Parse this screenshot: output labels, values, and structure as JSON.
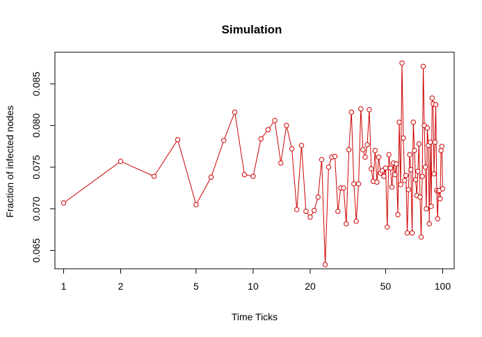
{
  "chart_data": {
    "type": "line",
    "title": "Simulation",
    "xlabel": "Time Ticks",
    "ylabel": "Fraction of infected nodes",
    "x_scale": "log",
    "xlim": [
      0.9,
      115
    ],
    "ylim": [
      0.0628,
      0.0888
    ],
    "x_ticks": [
      1,
      2,
      5,
      10,
      20,
      50,
      100
    ],
    "x_tick_labels": [
      "1",
      "2",
      "5",
      "10",
      "20",
      "50",
      "100"
    ],
    "y_ticks": [
      0.065,
      0.07,
      0.075,
      0.08,
      0.085
    ],
    "y_tick_labels": [
      "0.065",
      "0.070",
      "0.075",
      "0.080",
      "0.085"
    ],
    "grid": false,
    "legend": false,
    "series_color": "#cc0000",
    "series": [
      {
        "x": [
          1,
          2,
          3,
          4,
          5,
          6,
          7,
          8,
          9,
          10,
          11,
          12,
          13,
          14,
          15,
          16,
          17,
          18,
          19,
          20,
          21,
          22,
          23,
          24,
          25,
          26,
          27,
          28,
          29,
          30,
          31,
          32,
          33,
          34,
          35,
          36,
          37,
          38,
          39,
          40,
          41,
          42,
          43,
          44,
          45,
          46,
          47,
          48,
          49,
          50,
          51,
          52,
          53,
          54,
          55,
          56,
          57,
          58,
          59,
          60,
          61,
          62,
          63,
          64,
          65,
          66,
          67,
          68,
          69,
          70,
          71,
          72,
          73,
          74,
          75,
          76,
          77,
          78,
          79,
          80,
          81,
          82,
          83,
          84,
          85,
          86,
          87,
          88,
          89,
          90,
          91,
          92,
          93,
          94,
          95,
          96,
          97,
          98,
          99,
          100
        ],
        "y": [
          0.0707,
          0.0757,
          0.0739,
          0.0783,
          0.0705,
          0.0738,
          0.0782,
          0.0816,
          0.0741,
          0.0739,
          0.0784,
          0.0795,
          0.0806,
          0.0755,
          0.08,
          0.0772,
          0.0699,
          0.0776,
          0.0697,
          0.069,
          0.0698,
          0.0714,
          0.0759,
          0.0633,
          0.075,
          0.0762,
          0.0763,
          0.0697,
          0.0725,
          0.0725,
          0.0682,
          0.0771,
          0.0816,
          0.073,
          0.0685,
          0.073,
          0.082,
          0.0771,
          0.0762,
          0.0777,
          0.0819,
          0.0748,
          0.0733,
          0.077,
          0.0732,
          0.0762,
          0.0743,
          0.0746,
          0.0739,
          0.0749,
          0.0678,
          0.0765,
          0.0749,
          0.0726,
          0.0755,
          0.0741,
          0.0754,
          0.0693,
          0.0804,
          0.0729,
          0.0875,
          0.0785,
          0.0734,
          0.074,
          0.0671,
          0.0723,
          0.0765,
          0.0747,
          0.0671,
          0.0804,
          0.077,
          0.0735,
          0.0716,
          0.0745,
          0.0778,
          0.0714,
          0.0666,
          0.0739,
          0.0871,
          0.08,
          0.075,
          0.07,
          0.0797,
          0.0776,
          0.0682,
          0.078,
          0.0703,
          0.0833,
          0.0826,
          0.0742,
          0.078,
          0.0825,
          0.0722,
          0.0688,
          0.0721,
          0.0722,
          0.0712,
          0.077,
          0.0775,
          0.0724
        ]
      }
    ]
  }
}
